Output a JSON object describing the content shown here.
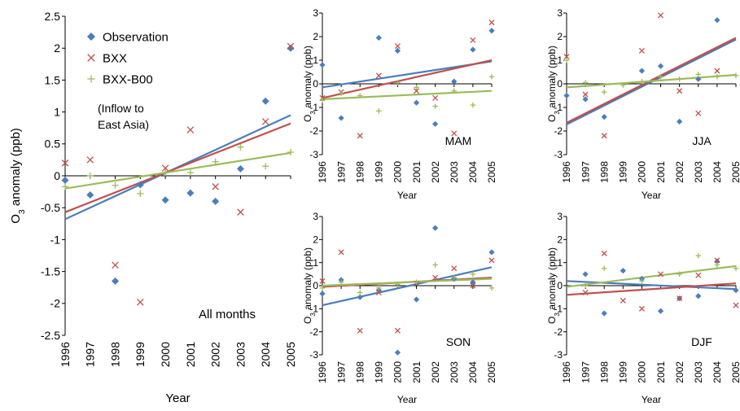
{
  "chart_data": [
    {
      "type": "scatter",
      "id": "main",
      "panel_label": "All months",
      "xlabel": "Year",
      "ylabel": "O3 anomaly (ppb)",
      "x": [
        1996,
        1997,
        1998,
        1999,
        2000,
        2001,
        2002,
        2003,
        2004,
        2005
      ],
      "ylim": [
        -2.5,
        2.5
      ],
      "yticks": [
        "-2.5",
        "-2",
        "-1.5",
        "-1",
        "-0.5",
        "0",
        "0.5",
        "1",
        "1.5",
        "2",
        "2.5"
      ],
      "legend": {
        "position": "top-left",
        "entries": [
          "Observation",
          "BXX",
          "BXX-B00"
        ],
        "note_line1": "(Inflow to",
        "note_line2": "East Asia)"
      },
      "series": [
        {
          "name": "Observation",
          "marker": "diamond",
          "color": "#4a7ebb",
          "values": [
            -0.07,
            -0.3,
            -1.65,
            -0.14,
            -0.38,
            -0.27,
            -0.4,
            0.11,
            1.17,
            2.0
          ],
          "trend": [
            -0.68,
            0.95
          ]
        },
        {
          "name": "BXX",
          "marker": "x",
          "color": "#c0504d",
          "values": [
            0.2,
            0.25,
            -1.4,
            -1.98,
            0.12,
            0.72,
            -0.17,
            -0.57,
            0.85,
            2.03
          ],
          "trend": [
            -0.57,
            0.82
          ]
        },
        {
          "name": "BXX-B00",
          "marker": "plus",
          "color": "#9bbb59",
          "values": [
            -0.17,
            0.0,
            -0.15,
            -0.28,
            0.05,
            0.05,
            0.22,
            0.45,
            0.15,
            0.37
          ],
          "trend": [
            -0.2,
            0.36
          ]
        }
      ]
    },
    {
      "type": "scatter",
      "id": "mam",
      "panel_label": "MAM",
      "xlabel": "Year",
      "ylabel": "O3 anomaly (ppb)",
      "x": [
        1996,
        1997,
        1998,
        1999,
        2000,
        2001,
        2002,
        2003,
        2004,
        2005
      ],
      "ylim": [
        -3,
        3
      ],
      "yticks": [
        "-3",
        "-2",
        "-1",
        "0",
        "1",
        "2",
        "3"
      ],
      "series": [
        {
          "name": "Observation",
          "marker": "diamond",
          "color": "#4a7ebb",
          "values": [
            0.8,
            -1.45,
            null,
            1.95,
            1.4,
            -0.8,
            -1.7,
            0.1,
            1.45,
            2.25
          ],
          "trend": [
            -0.15,
            0.95
          ]
        },
        {
          "name": "BXX",
          "marker": "x",
          "color": "#c0504d",
          "values": [
            -0.6,
            -0.35,
            -2.2,
            0.35,
            1.6,
            -0.3,
            -0.6,
            -2.1,
            1.85,
            2.6
          ],
          "trend": [
            -0.6,
            1.0
          ]
        },
        {
          "name": "BXX-B00",
          "marker": "plus",
          "color": "#9bbb59",
          "values": [
            -0.7,
            -0.4,
            -0.5,
            -1.15,
            0.05,
            -0.15,
            -0.95,
            -0.3,
            -0.9,
            0.3
          ],
          "trend": [
            -0.65,
            -0.3
          ]
        }
      ]
    },
    {
      "type": "scatter",
      "id": "jja",
      "panel_label": "JJA",
      "xlabel": "Year",
      "ylabel": "O3 anomaly (ppb)",
      "x": [
        1996,
        1997,
        1998,
        1999,
        2000,
        2001,
        2002,
        2003,
        2004,
        2005
      ],
      "ylim": [
        -3,
        3
      ],
      "yticks": [
        "-3",
        "-2",
        "-1",
        "0",
        "1",
        "2",
        "3"
      ],
      "series": [
        {
          "name": "Observation",
          "marker": "diamond",
          "color": "#4a7ebb",
          "values": [
            -0.5,
            -0.65,
            -1.4,
            null,
            0.55,
            0.75,
            -1.6,
            0.2,
            2.7,
            null
          ],
          "trend": [
            -1.72,
            1.88
          ]
        },
        {
          "name": "BXX",
          "marker": "x",
          "color": "#c0504d",
          "values": [
            1.15,
            -0.45,
            -2.2,
            null,
            1.4,
            2.9,
            -0.3,
            -1.25,
            0.55,
            null
          ],
          "trend": [
            -1.65,
            1.95
          ]
        },
        {
          "name": "BXX-B00",
          "marker": "plus",
          "color": "#9bbb59",
          "values": [
            1.0,
            0.05,
            -0.35,
            -0.05,
            0.1,
            0.3,
            0.2,
            0.4,
            0.3,
            0.35
          ],
          "trend": [
            -0.15,
            0.38
          ]
        }
      ]
    },
    {
      "type": "scatter",
      "id": "son",
      "panel_label": "SON",
      "xlabel": "Year",
      "ylabel": "O3 anomaly (ppb)",
      "x": [
        1996,
        1997,
        1998,
        1999,
        2000,
        2001,
        2002,
        2003,
        2004,
        2005
      ],
      "ylim": [
        -3,
        3
      ],
      "yticks": [
        "-3",
        "-2",
        "-1",
        "0",
        "1",
        "2",
        "3"
      ],
      "series": [
        {
          "name": "Observation",
          "marker": "diamond",
          "color": "#4a7ebb",
          "values": [
            -0.35,
            0.25,
            -0.5,
            -0.2,
            -2.9,
            -0.6,
            2.5,
            0.3,
            0.15,
            1.45
          ],
          "trend": [
            -0.85,
            0.8
          ]
        },
        {
          "name": "BXX",
          "marker": "x",
          "color": "#c0504d",
          "values": [
            0.2,
            1.45,
            -1.95,
            -0.3,
            -1.95,
            0.1,
            0.35,
            0.75,
            0.0,
            1.1
          ],
          "trend": [
            -0.05,
            0.35
          ]
        },
        {
          "name": "BXX-B00",
          "marker": "plus",
          "color": "#9bbb59",
          "values": [
            -0.1,
            0.15,
            -0.3,
            -0.1,
            0.05,
            0.15,
            0.9,
            0.35,
            0.5,
            -0.1
          ],
          "trend": [
            0.0,
            0.3
          ]
        }
      ]
    },
    {
      "type": "scatter",
      "id": "djf",
      "panel_label": "DJF",
      "xlabel": "Year",
      "ylabel": "O3 anomaly (ppb)",
      "x": [
        1996,
        1997,
        1998,
        1999,
        2000,
        2001,
        2002,
        2003,
        2004,
        2005
      ],
      "ylim": [
        -3,
        3
      ],
      "yticks": [
        "-3",
        "-2",
        "-1",
        "0",
        "1",
        "2",
        "3"
      ],
      "series": [
        {
          "name": "Observation",
          "marker": "diamond",
          "color": "#4a7ebb",
          "values": [
            null,
            0.5,
            -1.2,
            0.65,
            0.3,
            -1.1,
            -0.55,
            -0.45,
            1.05,
            -0.2
          ],
          "trend": [
            0.2,
            -0.15
          ]
        },
        {
          "name": "BXX",
          "marker": "x",
          "color": "#c0504d",
          "values": [
            null,
            -0.3,
            1.4,
            -0.65,
            -1.0,
            0.5,
            -0.55,
            0.45,
            1.1,
            -0.85
          ],
          "trend": [
            -0.4,
            0.1
          ]
        },
        {
          "name": "BXX-B00",
          "marker": "plus",
          "color": "#9bbb59",
          "values": [
            null,
            0.0,
            0.75,
            null,
            0.2,
            null,
            0.5,
            1.3,
            0.9,
            0.75
          ],
          "trend": [
            -0.05,
            0.85
          ]
        }
      ]
    }
  ]
}
